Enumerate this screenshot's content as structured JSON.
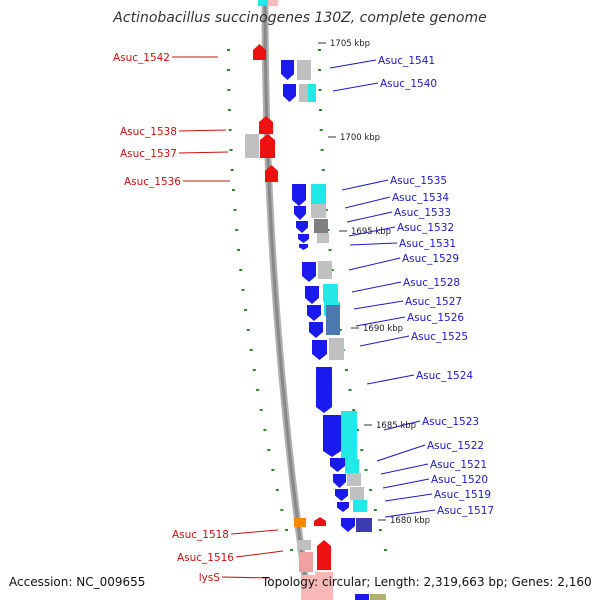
{
  "title": "Actinobacillus succinogenes 130Z, complete genome",
  "footer": {
    "accession": "Accession: NC_009655",
    "summary": "Topology: circular; Length: 2,319,663 bp; Genes: 2,160"
  },
  "colors": {
    "forward_gene": "#1a1aee",
    "reverse_gene": "#ee1111",
    "cyan_track": "#22e8e8",
    "gray_track": "#c0c0c0",
    "dark_gray_track": "#808080",
    "steel_track": "#4a7ab0",
    "orange_gene": "#ff8800",
    "label_right": "#1a1acc",
    "label_left": "#cc1111",
    "tick": "#2a8a2a",
    "backbone": "#888888"
  },
  "scale_marks": [
    "1705 kbp",
    "1700 kbp",
    "1695 kbp",
    "1690 kbp",
    "1685 kbp",
    "1680 kbp"
  ],
  "right_labels": [
    "Asuc_1541",
    "Asuc_1540",
    "Asuc_1535",
    "Asuc_1534",
    "Asuc_1533",
    "Asuc_1532",
    "Asuc_1531",
    "Asuc_1529",
    "Asuc_1528",
    "Asuc_1527",
    "Asuc_1526",
    "Asuc_1525",
    "Asuc_1524",
    "Asuc_1523",
    "Asuc_1522",
    "Asuc_1521",
    "Asuc_1520",
    "Asuc_1519",
    "Asuc_1517"
  ],
  "left_labels": [
    "Asuc_1542",
    "Asuc_1538",
    "Asuc_1537",
    "Asuc_1536",
    "Asuc_1518",
    "Asuc_1516",
    "lysS"
  ]
}
